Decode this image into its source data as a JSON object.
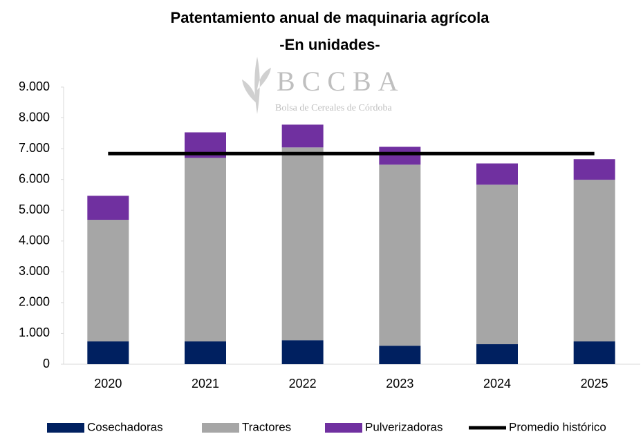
{
  "chart_data": {
    "type": "bar",
    "stacked": true,
    "title": "Patentamiento anual de maquinaria agrícola",
    "subtitle": "-En unidades-",
    "watermark": {
      "title": "BCCBA",
      "subtitle": "Bolsa de Cereales de Córdoba"
    },
    "categories": [
      "2020",
      "2021",
      "2022",
      "2023",
      "2024",
      "2025"
    ],
    "series": [
      {
        "name": "Cosechadoras",
        "color": "#002060",
        "values": [
          740,
          740,
          780,
          600,
          650,
          740
        ]
      },
      {
        "name": "Tractores",
        "color": "#a6a6a6",
        "values": [
          3950,
          5960,
          6260,
          5880,
          5180,
          5250
        ]
      },
      {
        "name": "Pulverizadoras",
        "color": "#7030a0",
        "values": [
          780,
          830,
          740,
          580,
          690,
          670
        ]
      },
      {
        "name": "Promedio histórico",
        "color": "#000000",
        "type": "line",
        "values": [
          6840,
          6840,
          6840,
          6840,
          6840,
          6840
        ]
      }
    ],
    "ylim": [
      0,
      9000
    ],
    "yticks": [
      0,
      {
        "value": 1000,
        "label": "1.000"
      },
      {
        "value": 2000,
        "label": "2.000"
      },
      {
        "value": 3000,
        "label": "3.000"
      },
      {
        "value": 4000,
        "label": "4.000"
      },
      {
        "value": 5000,
        "label": "5.000"
      },
      {
        "value": 6000,
        "label": "6.000"
      },
      {
        "value": 7000,
        "label": "7.000"
      },
      {
        "value": 8000,
        "label": "8.000"
      },
      {
        "value": 9000,
        "label": "9.000"
      }
    ],
    "grid": false,
    "legend": "bottom"
  }
}
